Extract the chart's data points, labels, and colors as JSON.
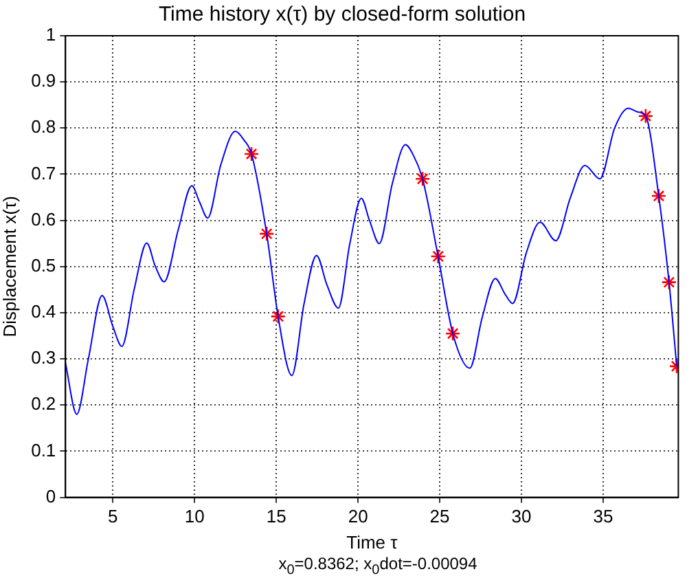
{
  "chart_data": {
    "type": "line",
    "title": "Time history x(τ) by closed-form solution",
    "xlabel": "Time τ",
    "ylabel": "Displacement x(τ)",
    "annotations": [
      "x$_{0}$=0.8362; x$_{0}$dot=-0.00094"
    ],
    "xlim": [
      2.1,
      39.6
    ],
    "xticks": [
      5,
      10,
      15,
      20,
      25,
      30,
      35
    ],
    "ylim": [
      0,
      1
    ],
    "yticks": [
      0,
      0.1,
      0.2,
      0.3,
      0.4,
      0.5,
      0.6,
      0.7,
      0.8,
      0.9,
      1
    ],
    "grid": true,
    "legend": false,
    "series": [
      {
        "type": "line",
        "color": "#0000ff",
        "marker": "none",
        "line_style": "solid",
        "x": [
          2.1,
          2.79,
          3.5,
          4.34,
          5.0,
          5.55,
          6.3,
          7.07,
          7.6,
          8.14,
          9.0,
          9.83,
          10.3,
          10.8,
          11.6,
          12.49,
          13.0,
          13.48,
          14.41,
          15.11,
          15.95,
          16.7,
          17.46,
          18.1,
          18.8,
          19.5,
          20.2,
          20.7,
          21.3,
          22.1,
          22.9,
          23.4,
          23.95,
          24.9,
          25.8,
          26.84,
          27.6,
          28.4,
          29.0,
          29.46,
          30.3,
          31.14,
          32.1,
          33.0,
          33.88,
          34.8,
          35.7,
          36.54,
          37.1,
          37.6,
          38.4,
          39.03,
          39.5
        ],
        "values": [
          0.29,
          0.18,
          0.3,
          0.437,
          0.37,
          0.327,
          0.45,
          0.551,
          0.5,
          0.467,
          0.58,
          0.675,
          0.64,
          0.605,
          0.72,
          0.793,
          0.775,
          0.744,
          0.571,
          0.392,
          0.264,
          0.42,
          0.524,
          0.46,
          0.41,
          0.55,
          0.648,
          0.6,
          0.55,
          0.68,
          0.764,
          0.74,
          0.69,
          0.522,
          0.355,
          0.28,
          0.39,
          0.474,
          0.44,
          0.42,
          0.53,
          0.596,
          0.556,
          0.65,
          0.719,
          0.69,
          0.8,
          0.843,
          0.835,
          0.826,
          0.653,
          0.466,
          0.284
        ]
      },
      {
        "type": "scatter",
        "color": "#ff0000",
        "marker": "cross",
        "x": [
          13.48,
          14.41,
          15.11,
          23.95,
          24.9,
          25.8,
          37.6,
          38.4,
          39.03,
          39.5
        ],
        "values": [
          0.744,
          0.571,
          0.392,
          0.69,
          0.522,
          0.355,
          0.826,
          0.653,
          0.466,
          0.284
        ]
      }
    ]
  }
}
